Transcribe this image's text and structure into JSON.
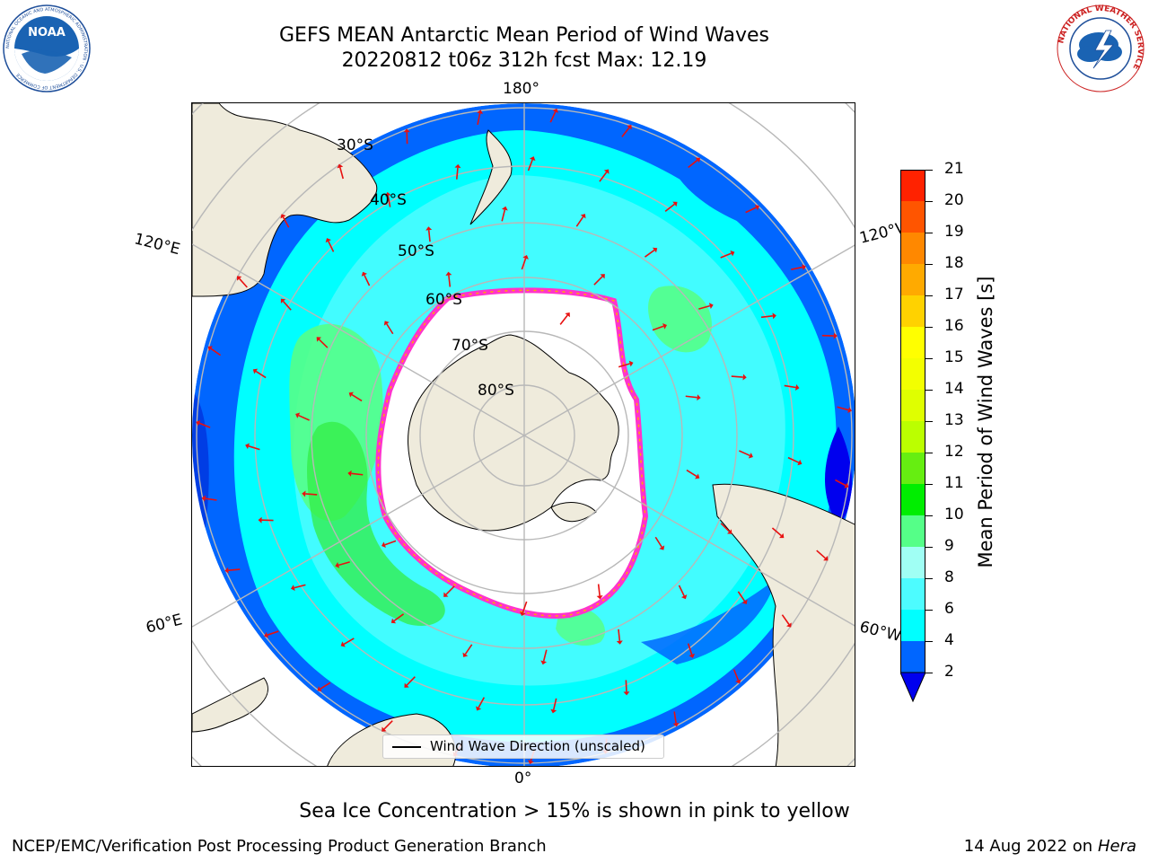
{
  "header": {
    "title_line1": "GEFS MEAN Antarctic Mean Period of Wind Waves",
    "title_line2": "20220812 t06z 312h fcst   Max: 12.19"
  },
  "logos": {
    "left": "NOAA",
    "left_ring_text": "NATIONAL OCEANIC AND ATMOSPHERIC ADMINISTRATION · U.S. DEPARTMENT OF COMMERCE",
    "right_ring_text": "NATIONAL WEATHER SERVICE"
  },
  "map": {
    "projection": "south-polar-stereographic",
    "longitude_labels": {
      "top": "180°",
      "bottom": "0°",
      "upper_left": "120°E",
      "upper_right": "120°W",
      "lower_left": "60°E",
      "lower_right": "60°W"
    },
    "latitude_labels": [
      "30°S",
      "40°S",
      "50°S",
      "60°S",
      "70°S",
      "80°S"
    ],
    "legend": "Wind Wave Direction (unscaled)",
    "colors": {
      "land": "#efebdc",
      "sea_ice_edge": "#ff33cc",
      "arrow": "#e81010",
      "graticule": "#b8b8b8"
    }
  },
  "colorbar": {
    "title": "Mean Period of Wind Waves [s]",
    "ticks": [
      "2",
      "4",
      "6",
      "8",
      "9",
      "10",
      "11",
      "12",
      "13",
      "14",
      "15",
      "16",
      "17",
      "18",
      "19",
      "20",
      "21"
    ],
    "colors": [
      "#0066ff",
      "#00ffff",
      "#4dfcff",
      "#a0fff4",
      "#55ff88",
      "#00ee00",
      "#66ee11",
      "#bbff00",
      "#dfff00",
      "#f3ff00",
      "#ffff00",
      "#ffd200",
      "#ffaa00",
      "#ff8800",
      "#ff5500",
      "#ff2200",
      "#ff0000"
    ],
    "under_color": "#0000ee"
  },
  "footer": {
    "note": "Sea Ice Concentration > 15% is shown in pink to yellow",
    "credit": "NCEP/EMC/Verification Post Processing Product Generation Branch",
    "date": "14 Aug 2022 on",
    "machine": "Hera"
  }
}
